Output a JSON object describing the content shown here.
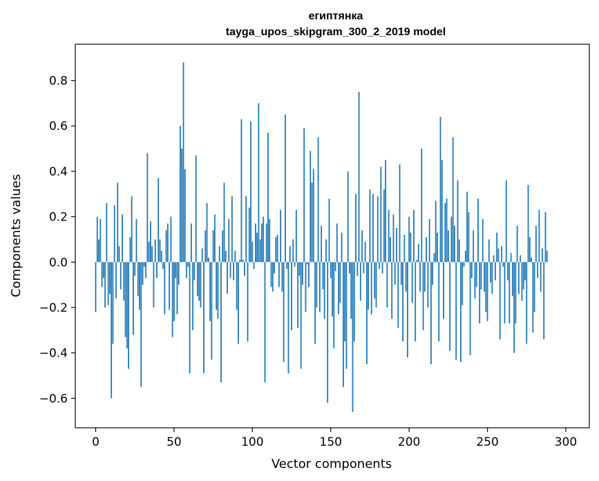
{
  "chart_data": {
    "type": "bar",
    "title": "египтянка",
    "subtitle": "tayga_upos_skipgram_300_2_2019 model",
    "xlabel": "Vector components",
    "ylabel": "Components values",
    "xlim": [
      -13,
      315
    ],
    "ylim": [
      -0.73,
      0.96
    ],
    "xticks": [
      0,
      50,
      100,
      150,
      200,
      250,
      300
    ],
    "yticks": [
      -0.6,
      -0.4,
      -0.2,
      0.0,
      0.2,
      0.4,
      0.6,
      0.8
    ],
    "x_tick_labels": [
      "0",
      "50",
      "100",
      "150",
      "200",
      "250",
      "300"
    ],
    "y_tick_labels": [
      "−0.6",
      "−0.4",
      "−0.2",
      "0.0",
      "0.2",
      "0.4",
      "0.6",
      "0.8"
    ],
    "bar_color": "#1f77b4",
    "grid": false,
    "values": [
      -0.22,
      0.2,
      0.1,
      0.19,
      -0.11,
      -0.07,
      -0.2,
      0.26,
      -0.19,
      -0.14,
      -0.6,
      -0.36,
      0.25,
      -0.16,
      0.35,
      0.07,
      -0.12,
      0.21,
      -0.17,
      -0.33,
      -0.38,
      -0.47,
      0.11,
      0.29,
      -0.32,
      -0.06,
      0.19,
      -0.15,
      -0.21,
      -0.55,
      -0.1,
      -0.02,
      -0.07,
      0.48,
      0.09,
      0.18,
      0.07,
      -0.2,
      0.1,
      -0.07,
      0.37,
      0.1,
      0.05,
      -0.03,
      -0.23,
      0.14,
      0.17,
      -0.21,
      0.2,
      -0.33,
      -0.26,
      -0.07,
      -0.23,
      -0.1,
      0.6,
      0.5,
      0.88,
      0.41,
      -0.07,
      -0.02,
      -0.49,
      0.17,
      -0.3,
      -0.08,
      0.47,
      -0.15,
      -0.17,
      -0.2,
      0.06,
      -0.49,
      0.14,
      0.26,
      0.02,
      -0.26,
      -0.43,
      0.14,
      0.21,
      -0.21,
      -0.25,
      0.07,
      -0.53,
      0.14,
      0.35,
      0.05,
      -0.14,
      0.19,
      -0.07,
      0.29,
      -0.08,
      0.05,
      -0.21,
      -0.36,
      0.01,
      0.63,
      0.01,
      -0.06,
      0.29,
      -0.35,
      0.24,
      0.62,
      0.09,
      -0.03,
      0.17,
      0.13,
      0.7,
      0.1,
      0.17,
      0.2,
      -0.53,
      0.17,
      0.57,
      0.19,
      -0.11,
      -0.13,
      -0.05,
      0.11,
      0.12,
      -0.11,
      0.23,
      -0.13,
      -0.44,
      0.65,
      -0.03,
      -0.49,
      0.07,
      -0.3,
      0.1,
      -0.02,
      0.23,
      -0.29,
      -0.06,
      -0.47,
      -0.1,
      0.59,
      -0.22,
      -0.01,
      -0.11,
      0.49,
      0.35,
      0.41,
      -0.36,
      -0.2,
      0.55,
      -0.22,
      0.16,
      -0.12,
      -0.25,
      0.1,
      -0.62,
      0.28,
      -0.07,
      -0.24,
      -0.38,
      -0.04,
      0.17,
      -0.23,
      -0.18,
      0.13,
      -0.55,
      -0.35,
      -0.47,
      0.4,
      -0.05,
      -0.25,
      -0.66,
      -0.35,
      0.3,
      -0.06,
      0.75,
      -0.17,
      0.14,
      -0.05,
      0.09,
      -0.45,
      -0.21,
      0.32,
      -0.23,
      0.3,
      -0.16,
      -0.2,
      0.29,
      -0.03,
      0.42,
      -0.05,
      0.32,
      0.45,
      -0.2,
      0.23,
      0.11,
      -0.25,
      0.21,
      -0.1,
      0.15,
      -0.29,
      0.43,
      -0.1,
      -0.35,
      0.12,
      -0.13,
      -0.42,
      0.2,
      0.13,
      -0.18,
      0.23,
      -0.35,
      0.01,
      0.08,
      -0.13,
      0.5,
      -0.3,
      -0.13,
      0.11,
      -0.2,
      0.19,
      -0.45,
      -0.1,
      0.04,
      0.27,
      0.13,
      -0.35,
      0.64,
      0.45,
      -0.25,
      0.26,
      0.28,
      0.14,
      -0.39,
      0.2,
      0.55,
      0.16,
      -0.43,
      0.36,
      0.1,
      -0.44,
      -0.19,
      -0.02,
      0.05,
      0.31,
      0.22,
      -0.41,
      -0.07,
      0.14,
      -0.16,
      -0.11,
      0.28,
      -0.27,
      -0.12,
      0.19,
      -0.13,
      -0.22,
      -0.26,
      0.1,
      -0.09,
      -0.14,
      0.03,
      -0.08,
      0.13,
      0.06,
      -0.34,
      0.07,
      -0.02,
      -0.27,
      0.36,
      -0.08,
      -0.27,
      0.04,
      -0.15,
      -0.4,
      -0.27,
      0.16,
      -0.14,
      0.03,
      -0.17,
      -0.12,
      -0.08,
      -0.36,
      0.34,
      0.11,
      0.02,
      -0.31,
      -0.22,
      0.16,
      -0.07,
      0.23,
      -0.13,
      0.06,
      -0.34,
      0.22,
      0.05
    ]
  }
}
